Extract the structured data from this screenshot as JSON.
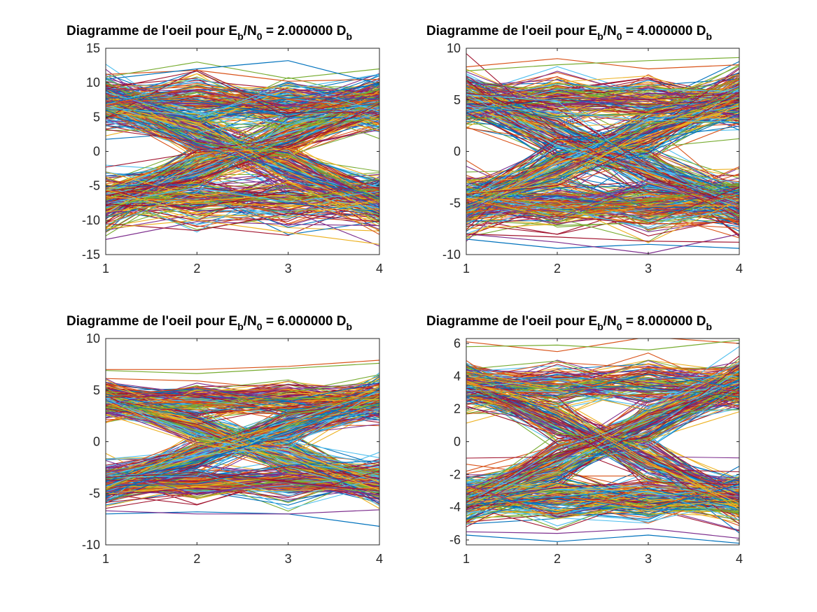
{
  "figure": {
    "background": "#ffffff",
    "axis_color": "#262626",
    "series_colors": [
      "#0072BD",
      "#D95319",
      "#EDB120",
      "#7E2F8E",
      "#77AC30",
      "#4DBEEE",
      "#A2142F"
    ]
  },
  "chart_data": [
    {
      "type": "line",
      "title": {
        "prefix": "Diagramme de l'oeil pour E",
        "sub1": "b",
        "mid": "/N",
        "sub2": "0",
        "suffix": " = 2.000000 D",
        "sub3": "b"
      },
      "xlabel": "",
      "ylabel": "",
      "x": [
        1,
        2,
        3,
        4
      ],
      "xlim": [
        1,
        4
      ],
      "ylim": [
        -15,
        15
      ],
      "xticks": [
        "1",
        "2",
        "3",
        "4"
      ],
      "yticks": [
        "-15",
        "-10",
        "-5",
        "0",
        "5",
        "10",
        "15"
      ],
      "grid": false,
      "eye": {
        "amplitude": 7,
        "noise_sigma": 1.8,
        "traces": 500
      },
      "series": [
        {
          "values": [
            11.2,
            11.8,
            10.2,
            10.5
          ]
        },
        {
          "values": [
            10.8,
            13.0,
            10.6,
            12.0
          ]
        },
        {
          "values": [
            10.5,
            12.0,
            13.2,
            9.8
          ]
        },
        {
          "values": [
            -12.8,
            -10.2,
            -10.6,
            -10.8
          ]
        },
        {
          "values": [
            -10.5,
            -11.5,
            -9.0,
            -10.2
          ]
        },
        {
          "values": [
            -11.2,
            -10.0,
            -11.8,
            -13.5
          ]
        }
      ]
    },
    {
      "type": "line",
      "title": {
        "prefix": "Diagramme de l'oeil pour E",
        "sub1": "b",
        "mid": "/N",
        "sub2": "0",
        "suffix": " = 4.000000 D",
        "sub3": "b"
      },
      "xlabel": "",
      "ylabel": "",
      "x": [
        1,
        2,
        3,
        4
      ],
      "xlim": [
        1,
        4
      ],
      "ylim": [
        -10,
        10
      ],
      "xticks": [
        "1",
        "2",
        "3",
        "4"
      ],
      "yticks": [
        "-10",
        "-5",
        "0",
        "5",
        "10"
      ],
      "grid": false,
      "eye": {
        "amplitude": 5,
        "noise_sigma": 1.25,
        "traces": 500
      },
      "series": [
        {
          "values": [
            8.2,
            9.0,
            8.0,
            8.4
          ]
        },
        {
          "values": [
            7.8,
            8.4,
            8.8,
            9.1
          ]
        },
        {
          "values": [
            -8.5,
            -9.4,
            -9.0,
            -9.4
          ]
        },
        {
          "values": [
            -8.0,
            -8.8,
            -9.9,
            -8.0
          ]
        },
        {
          "values": [
            -8.0,
            -8.3,
            -8.7,
            -8.8
          ]
        }
      ]
    },
    {
      "type": "line",
      "title": {
        "prefix": "Diagramme de l'oeil pour E",
        "sub1": "b",
        "mid": "/N",
        "sub2": "0",
        "suffix": " = 6.000000 D",
        "sub3": "b"
      },
      "xlabel": "",
      "ylabel": "",
      "x": [
        1,
        2,
        3,
        4
      ],
      "xlim": [
        1,
        4
      ],
      "ylim": [
        -10,
        10
      ],
      "xticks": [
        "1",
        "2",
        "3",
        "4"
      ],
      "yticks": [
        "-10",
        "-5",
        "0",
        "5",
        "10"
      ],
      "grid": false,
      "eye": {
        "amplitude": 4,
        "noise_sigma": 0.9,
        "traces": 500
      },
      "series": [
        {
          "values": [
            7.0,
            7.0,
            7.3,
            7.9
          ]
        },
        {
          "values": [
            6.9,
            6.6,
            7.1,
            7.6
          ]
        },
        {
          "values": [
            -7.0,
            -6.8,
            -7.0,
            -8.2
          ]
        },
        {
          "values": [
            -6.7,
            -7.0,
            -7.0,
            -6.6
          ]
        }
      ]
    },
    {
      "type": "line",
      "title": {
        "prefix": "Diagramme de l'oeil pour E",
        "sub1": "b",
        "mid": "/N",
        "sub2": "0",
        "suffix": " = 8.000000 D",
        "sub3": "b"
      },
      "xlabel": "",
      "ylabel": "",
      "x": [
        1,
        2,
        3,
        4
      ],
      "xlim": [
        1,
        4
      ],
      "ylim": [
        -6.3,
        6.3
      ],
      "xticks": [
        "1",
        "2",
        "3",
        "4"
      ],
      "yticks": [
        "-6",
        "-4",
        "-2",
        "0",
        "2",
        "4",
        "6"
      ],
      "ytick_values": [
        -6,
        -4,
        -2,
        0,
        2,
        4,
        6
      ],
      "grid": false,
      "eye": {
        "amplitude": 3.5,
        "noise_sigma": 0.7,
        "traces": 500
      },
      "series": [
        {
          "values": [
            6.1,
            5.5,
            6.4,
            6.0
          ]
        },
        {
          "values": [
            5.8,
            5.9,
            5.6,
            6.2
          ]
        },
        {
          "values": [
            -5.7,
            -6.1,
            -5.7,
            -6.2
          ]
        },
        {
          "values": [
            -5.5,
            -5.6,
            -5.3,
            -5.9
          ]
        }
      ]
    }
  ]
}
